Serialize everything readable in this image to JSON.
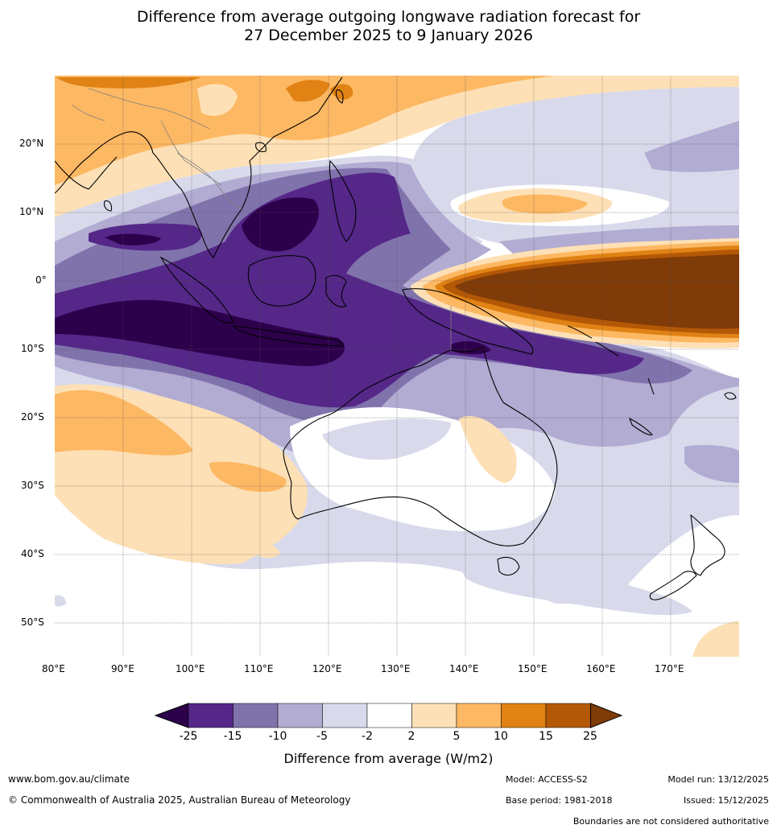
{
  "title_line1": "Difference from average outgoing longwave radiation forecast for",
  "title_line2": "27 December 2025 to 9 January 2026",
  "lon_labels": [
    "80°E",
    "90°E",
    "100°E",
    "110°E",
    "120°E",
    "130°E",
    "140°E",
    "150°E",
    "160°E",
    "170°E"
  ],
  "lat_labels": [
    "20°N",
    "10°N",
    "0°",
    "10°S",
    "20°S",
    "30°S",
    "40°S",
    "50°S"
  ],
  "colorbar": {
    "labels": [
      "-25",
      "-15",
      "-10",
      "-5",
      "-2",
      "2",
      "5",
      "10",
      "15",
      "25"
    ],
    "colors": [
      "#2d004b",
      "#542788",
      "#8073ac",
      "#b2abd2",
      "#d8daeb",
      "#ffffff",
      "#fee0b6",
      "#fdb863",
      "#e08214",
      "#b35806",
      "#7f3b08"
    ],
    "title": "Difference from average (W/m2)"
  },
  "footer": {
    "website": "www.bom.gov.au/climate",
    "copyright": "© Commonwealth of Australia 2025, Australian Bureau of Meteorology",
    "model": "Model: ACCESS-S2",
    "base_period": "Base period: 1981-2018",
    "model_run": "Model run: 13/12/2025",
    "issued": "Issued: 15/12/2025",
    "disclaimer": "Boundaries are not considered authoritative"
  }
}
